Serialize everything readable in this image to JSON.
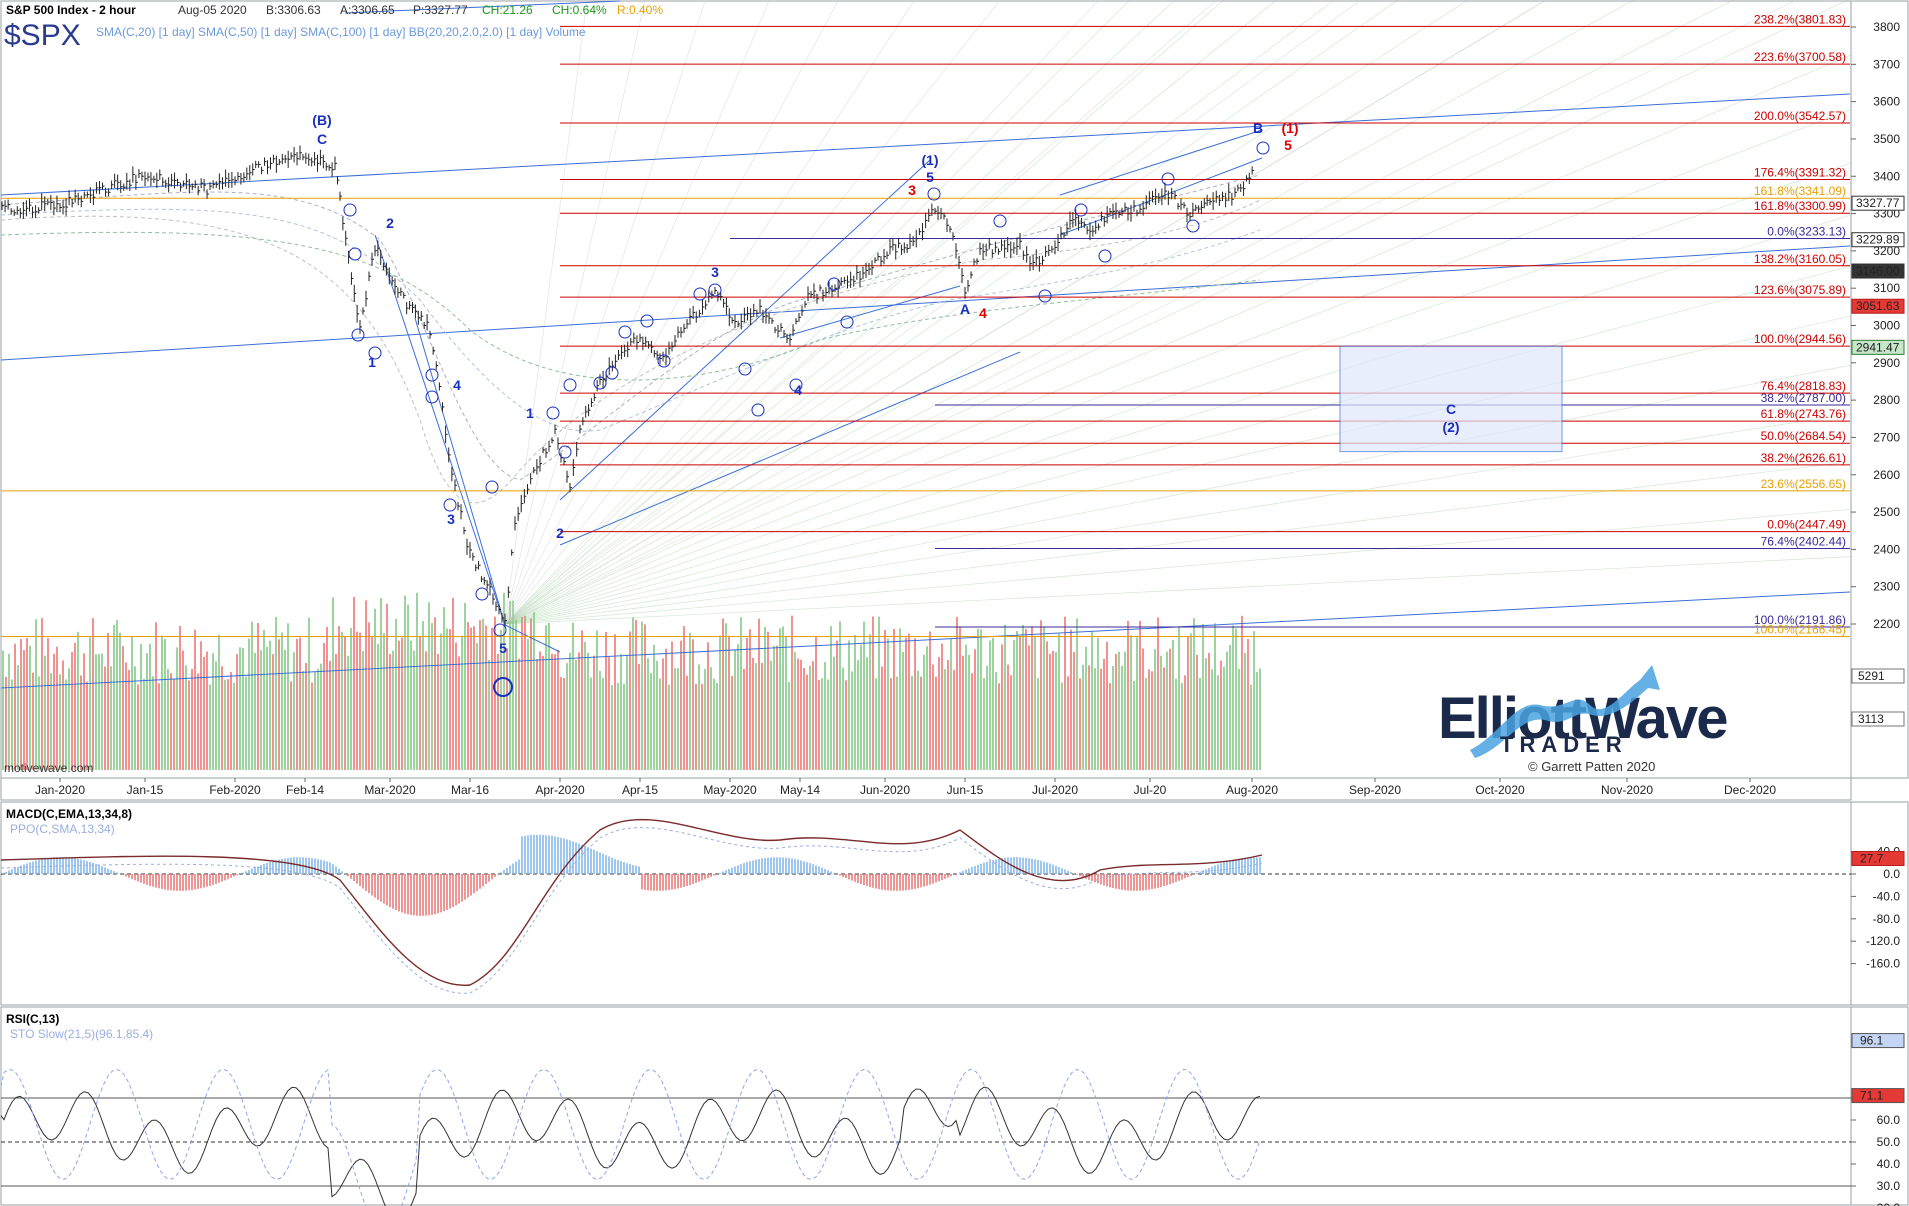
{
  "header": {
    "title": "S&P 500 Index - 2 hour",
    "date": "Aug-05 2020",
    "bid": "B:3306.63",
    "ask": "A:3306.65",
    "price": "P:3327.77",
    "change": "CH:21.26",
    "change_pct": "CH:0.64%",
    "range_pct": "R:0.40%",
    "symbol": "$SPX",
    "overlays": [
      "SMA(C,20)",
      "[1 day]",
      "SMA(C,50)",
      "[1 day]",
      "SMA(C,100)",
      "[1 day]",
      "BB(20,20,2.0,2.0)",
      "[1 day]",
      "Volume"
    ]
  },
  "branding": {
    "logo_line1": "ElliottWave",
    "logo_line2": "TRADER",
    "copyright": "© Garrett Patten 2020",
    "watermark": "motivewave.com"
  },
  "colors": {
    "fib_red": "#cc0000",
    "fib_orange": "#e8a000",
    "fib_purple": "#3a2a9a",
    "wave_blue": "#1a2fbf",
    "wave_red": "#e00000",
    "trend_blue": "#3b6fd8",
    "volume_green": "#4caf50",
    "volume_red": "#e53935"
  },
  "chart_data": [
    {
      "type": "line",
      "title": "S&P 500 Index - 2 hour",
      "x_ticks": [
        "Jan-2020",
        "Jan-15",
        "Feb-2020",
        "Feb-14",
        "Mar-2020",
        "Mar-16",
        "Apr-2020",
        "Apr-15",
        "May-2020",
        "May-14",
        "Jun-2020",
        "Jun-15",
        "Jul-2020",
        "Jul-20",
        "Aug-2020",
        "Sep-2020",
        "Oct-2020",
        "Nov-2020",
        "Dec-2020"
      ],
      "y_ticks": [
        2200,
        2300,
        2400,
        2500,
        2600,
        2700,
        2800,
        2900,
        3000,
        3100,
        3200,
        3300,
        3400,
        3500,
        3600,
        3700,
        3800
      ],
      "ylim": [
        2160,
        3850
      ],
      "price_path": [
        [
          "Jan-2020",
          3230
        ],
        [
          "Jan-15",
          3290
        ],
        [
          "Feb-2020",
          3240
        ],
        [
          "Feb-14",
          3390
        ],
        [
          "Mar-2020",
          3090
        ],
        [
          "Mar-16",
          2480
        ],
        [
          "Apr-2020",
          2480
        ],
        [
          "Apr-15",
          2830
        ],
        [
          "May-2020",
          2870
        ],
        [
          "May-14",
          2830
        ],
        [
          "Jun-2020",
          3110
        ],
        [
          "Jun-15",
          3050
        ],
        [
          "Jul-2020",
          3160
        ],
        [
          "Jul-20",
          3220
        ],
        [
          "Aug-2020",
          3327
        ]
      ],
      "last_values": {
        "price": "3327.77",
        "sma_a": "3229.89",
        "sma_b": "3146.00",
        "sma_c": "3051.63",
        "sma_d": "2941.47"
      },
      "fib_levels": [
        {
          "label": "238.2%(3801.83)",
          "value": 3801.83,
          "color": "red"
        },
        {
          "label": "223.6%(3700.58)",
          "value": 3700.58,
          "color": "red"
        },
        {
          "label": "200.0%(3542.57)",
          "value": 3542.57,
          "color": "red"
        },
        {
          "label": "176.4%(3391.32)",
          "value": 3391.32,
          "color": "red"
        },
        {
          "label": "161.8%(3341.09)",
          "value": 3341.09,
          "color": "orange"
        },
        {
          "label": "161.8%(3300.99)",
          "value": 3300.99,
          "color": "red"
        },
        {
          "label": "0.0%(3233.13)",
          "value": 3233.13,
          "color": "purple"
        },
        {
          "label": "138.2%(3160.05)",
          "value": 3160.05,
          "color": "red"
        },
        {
          "label": "123.6%(3075.89)",
          "value": 3075.89,
          "color": "red"
        },
        {
          "label": "100.0%(2944.56)",
          "value": 2944.56,
          "color": "red"
        },
        {
          "label": "76.4%(2818.83)",
          "value": 2818.83,
          "color": "red"
        },
        {
          "label": "38.2%(2787.00)",
          "value": 2787.0,
          "color": "purple"
        },
        {
          "label": "61.8%(2743.76)",
          "value": 2743.76,
          "color": "red"
        },
        {
          "label": "50.0%(2684.54)",
          "value": 2684.54,
          "color": "red"
        },
        {
          "label": "38.2%(2626.61)",
          "value": 2626.61,
          "color": "red"
        },
        {
          "label": "23.6%(2556.65)",
          "value": 2556.65,
          "color": "orange"
        },
        {
          "label": "0.0%(2447.49)",
          "value": 2447.49,
          "color": "red"
        },
        {
          "label": "76.4%(2402.44)",
          "value": 2402.44,
          "color": "purple"
        },
        {
          "label": "100.0%(2191.86)",
          "value": 2191.86,
          "color": "purple"
        },
        {
          "label": "100.0%(2166.45)",
          "value": 2166.45,
          "color": "orange"
        }
      ],
      "target_box": {
        "label_top": "C",
        "label_bottom": "(2)",
        "y_top": 2944.56,
        "y_bottom": 2662
      },
      "wave_labels": [
        {
          "text": "(B)",
          "x": "Feb-14",
          "y": 3490,
          "color": "blue"
        },
        {
          "text": "C",
          "x": "Feb-14",
          "y": 3425,
          "color": "blue"
        },
        {
          "text": "1",
          "x": "Mar-2020",
          "y": 2765,
          "color": "blue"
        },
        {
          "text": "2",
          "x": "Mar-2020",
          "y": 3210,
          "color": "blue"
        },
        {
          "text": "3",
          "x": "Mar-16",
          "y": 2400,
          "color": "blue"
        },
        {
          "text": "4",
          "x": "Mar-16",
          "y": 2780,
          "color": "blue"
        },
        {
          "text": "5",
          "x": "Mar-16",
          "y": 2160,
          "color": "blue"
        },
        {
          "text": "1",
          "x": "Apr-2020",
          "y": 2680,
          "color": "blue"
        },
        {
          "text": "2",
          "x": "Apr-2020",
          "y": 2390,
          "color": "blue"
        },
        {
          "text": "3",
          "x": "May-2020",
          "y": 3010,
          "color": "blue"
        },
        {
          "text": "4",
          "x": "May-14",
          "y": 2720,
          "color": "blue"
        },
        {
          "text": "(1)",
          "x": "Jun-2020",
          "y": 3380,
          "color": "blue"
        },
        {
          "text": "5",
          "x": "Jun-2020",
          "y": 3340,
          "color": "blue"
        },
        {
          "text": "3",
          "x": "Jun-2020",
          "y": 3300,
          "color": "red"
        },
        {
          "text": "A",
          "x": "Jun-15",
          "y": 2930,
          "color": "blue"
        },
        {
          "text": "4",
          "x": "Jun-15",
          "y": 2920,
          "color": "red"
        },
        {
          "text": "B",
          "x": "Aug-2020",
          "y": 3470,
          "color": "blue"
        },
        {
          "text": "(1)",
          "x": "Aug-2020",
          "y": 3470,
          "color": "red"
        },
        {
          "text": "5",
          "x": "Aug-2020",
          "y": 3430,
          "color": "red"
        }
      ]
    },
    {
      "type": "line",
      "title": "MACD(C,EMA,13,34,8)",
      "subtitle": "PPO(C,SMA,13,34)",
      "y_ticks": [
        40.0,
        0.0,
        -40.0,
        -80.0,
        -120.0,
        -160.0
      ],
      "ylim": [
        -170,
        60
      ],
      "last_value": "27.7"
    },
    {
      "type": "line",
      "title": "RSI(C,13)",
      "subtitle": "STO Slow(21,5)(96.1,85.4)",
      "y_ticks": [
        70.0,
        60.0,
        50.0,
        40.0,
        30.0,
        20.0
      ],
      "ylim": [
        15,
        100
      ],
      "last_values": {
        "sto": "96.1",
        "rsi": "71.1"
      }
    }
  ],
  "volume_axis": {
    "upper": "5291",
    "lower": "3113"
  }
}
